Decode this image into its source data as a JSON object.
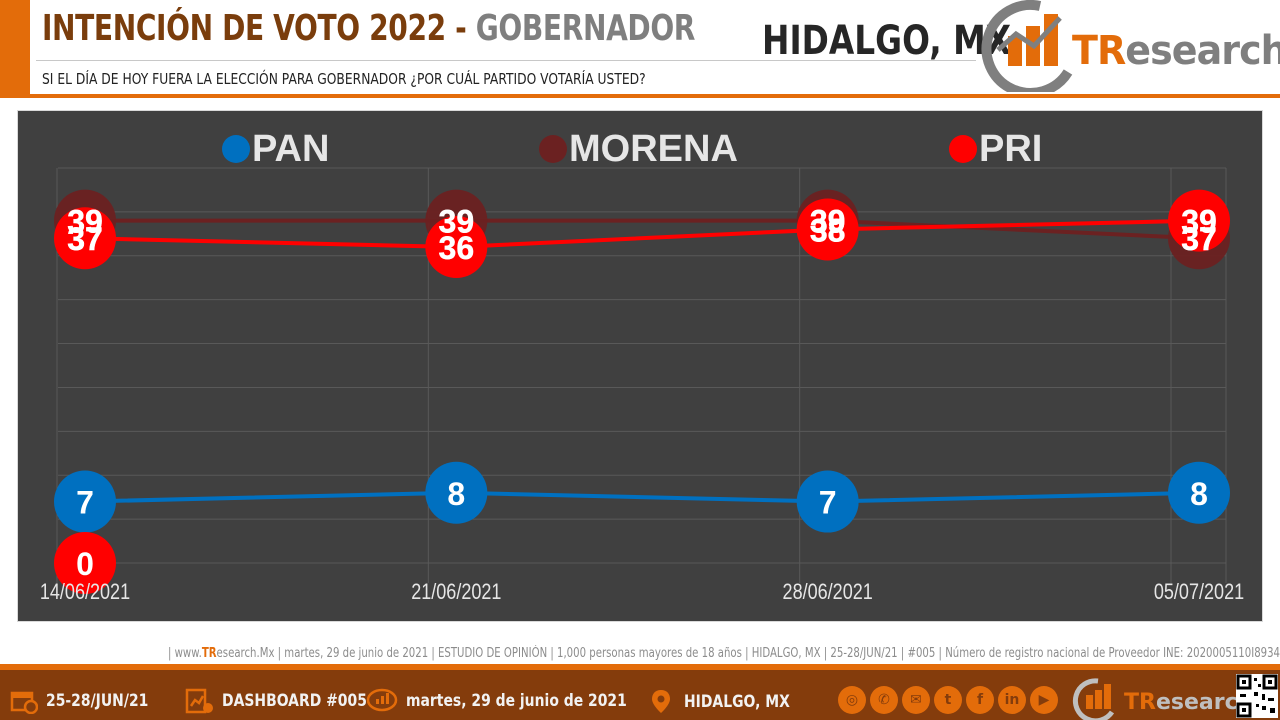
{
  "header": {
    "title_part1": "INTENCIÓN DE VOTO 2022 - ",
    "title_part2": "GOBERNADOR",
    "subtitle": "SI EL DÍA DE HOY FUERA LA ELECCIÓN PARA GOBERNADOR ¿POR CUÁL PARTIDO VOTARÍA USTED?",
    "location": "HIDALGO, MX"
  },
  "logo": {
    "prefix": "TR",
    "suffix": "esearch"
  },
  "colors": {
    "accent": "#e36c0a",
    "brand_dark": "#843c0c",
    "chart_bg": "#404040",
    "pan": "#0070c0",
    "morena": "#6b2121",
    "pri": "#ff0000"
  },
  "chart_data": {
    "type": "line",
    "categories": [
      "14/06/2021",
      "21/06/2021",
      "28/06/2021",
      "05/07/2021"
    ],
    "series": [
      {
        "name": "PAN",
        "color": "#0070c0",
        "values": [
          7,
          8,
          7,
          8
        ]
      },
      {
        "name": "MORENA",
        "color": "#6b2121",
        "values": [
          39,
          39,
          39,
          37
        ]
      },
      {
        "name": "PRI",
        "color": "#ff0000",
        "values": [
          37,
          36,
          38,
          39
        ]
      }
    ],
    "extra_point": {
      "series": "PRI",
      "category": "14/06/2021",
      "value": 0
    },
    "ylim": [
      0,
      45
    ],
    "grid": true,
    "legend": "top"
  },
  "source_line": {
    "prefix": "| www.",
    "brand": "TR",
    "rest": "esearch.Mx | martes, 29 de junio de 2021 | ESTUDIO DE OPINIÓN | 1,000 personas mayores de 18 años | HIDALGO, MX | 25-28/JUN/21 | #005 | Número de registro nacional de Proveedor INE: 2020005110I8934 |"
  },
  "footer": {
    "dates": "25-28/JUN/21",
    "dashboard": "DASHBOARD #005",
    "published": "martes, 29 de junio de 2021",
    "location": "HIDALGO, MX",
    "social_icons": [
      "globe-icon",
      "phone-icon",
      "mail-icon",
      "twitter-icon",
      "facebook-icon",
      "linkedin-icon",
      "youtube-icon"
    ],
    "logo_prefix": "TR",
    "logo_suffix": "esearch"
  }
}
